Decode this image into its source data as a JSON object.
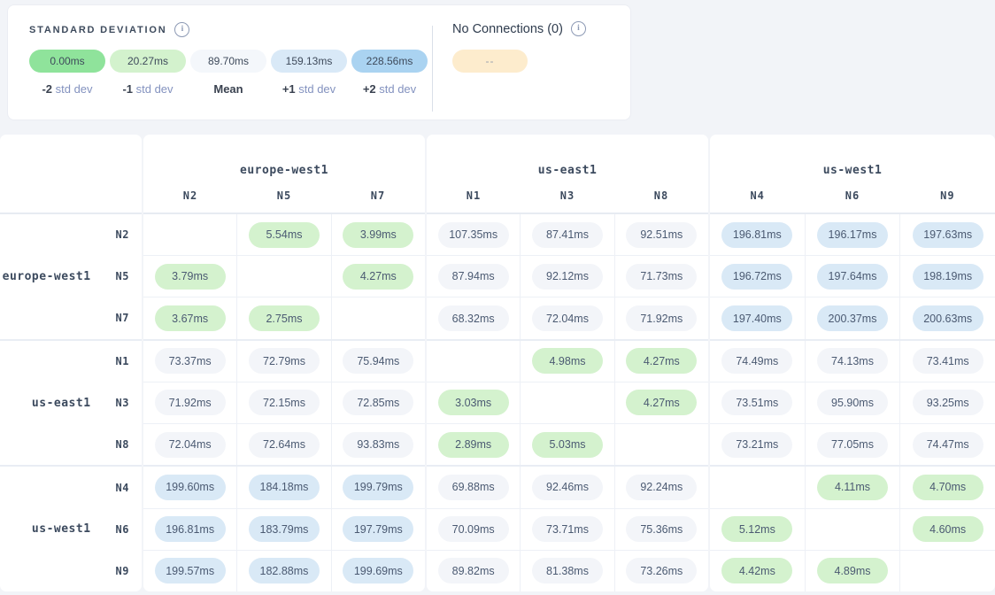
{
  "page": {
    "background": "#f2f4f8"
  },
  "legend": {
    "title": "STANDARD DEVIATION",
    "items": [
      {
        "value": "0.00ms",
        "prefix": "-2",
        "suffix": "std dev",
        "color": "#8fe39b"
      },
      {
        "value": "20.27ms",
        "prefix": "-1",
        "suffix": "std dev",
        "color": "#d3f2cd"
      },
      {
        "value": "89.70ms",
        "prefix": "Mean",
        "suffix": "",
        "color": "#f4f7fb"
      },
      {
        "value": "159.13ms",
        "prefix": "+1",
        "suffix": "std dev",
        "color": "#d9e9f7"
      },
      {
        "value": "228.56ms",
        "prefix": "+2",
        "suffix": "std dev",
        "color": "#aad3f1"
      }
    ]
  },
  "no_connections": {
    "title": "No Connections (0)",
    "chip_label": "--",
    "chip_color": "#fdeccd"
  },
  "matrix": {
    "column_groups": [
      {
        "region": "europe-west1",
        "nodes": [
          "N2",
          "N5",
          "N7"
        ]
      },
      {
        "region": "us-east1",
        "nodes": [
          "N1",
          "N3",
          "N8"
        ]
      },
      {
        "region": "us-west1",
        "nodes": [
          "N4",
          "N6",
          "N9"
        ]
      }
    ],
    "row_groups": [
      {
        "region": "europe-west1",
        "nodes": [
          "N2",
          "N5",
          "N7"
        ]
      },
      {
        "region": "us-east1",
        "nodes": [
          "N1",
          "N3",
          "N8"
        ]
      },
      {
        "region": "us-west1",
        "nodes": [
          "N4",
          "N6",
          "N9"
        ]
      }
    ],
    "tone_colors": {
      "g": "#d4f2ce",
      "n": "#f3f5f9",
      "b": "#d9e9f6"
    },
    "cells": [
      [
        "",
        "5.54ms",
        "3.99ms",
        "107.35ms",
        "87.41ms",
        "92.51ms",
        "196.81ms",
        "196.17ms",
        "197.63ms"
      ],
      [
        "3.79ms",
        "",
        "4.27ms",
        "87.94ms",
        "92.12ms",
        "71.73ms",
        "196.72ms",
        "197.64ms",
        "198.19ms"
      ],
      [
        "3.67ms",
        "2.75ms",
        "",
        "68.32ms",
        "72.04ms",
        "71.92ms",
        "197.40ms",
        "200.37ms",
        "200.63ms"
      ],
      [
        "73.37ms",
        "72.79ms",
        "75.94ms",
        "",
        "4.98ms",
        "4.27ms",
        "74.49ms",
        "74.13ms",
        "73.41ms"
      ],
      [
        "71.92ms",
        "72.15ms",
        "72.85ms",
        "3.03ms",
        "",
        "4.27ms",
        "73.51ms",
        "95.90ms",
        "93.25ms"
      ],
      [
        "72.04ms",
        "72.64ms",
        "93.83ms",
        "2.89ms",
        "5.03ms",
        "",
        "73.21ms",
        "77.05ms",
        "74.47ms"
      ],
      [
        "199.60ms",
        "184.18ms",
        "199.79ms",
        "69.88ms",
        "92.46ms",
        "92.24ms",
        "",
        "4.11ms",
        "4.70ms"
      ],
      [
        "196.81ms",
        "183.79ms",
        "197.79ms",
        "70.09ms",
        "73.71ms",
        "75.36ms",
        "5.12ms",
        "",
        "4.60ms"
      ],
      [
        "199.57ms",
        "182.88ms",
        "199.69ms",
        "89.82ms",
        "81.38ms",
        "73.26ms",
        "4.42ms",
        "4.89ms",
        ""
      ]
    ],
    "tones": [
      [
        "",
        "g",
        "g",
        "n",
        "n",
        "n",
        "b",
        "b",
        "b"
      ],
      [
        "g",
        "",
        "g",
        "n",
        "n",
        "n",
        "b",
        "b",
        "b"
      ],
      [
        "g",
        "g",
        "",
        "n",
        "n",
        "n",
        "b",
        "b",
        "b"
      ],
      [
        "n",
        "n",
        "n",
        "",
        "g",
        "g",
        "n",
        "n",
        "n"
      ],
      [
        "n",
        "n",
        "n",
        "g",
        "",
        "g",
        "n",
        "n",
        "n"
      ],
      [
        "n",
        "n",
        "n",
        "g",
        "g",
        "",
        "n",
        "n",
        "n"
      ],
      [
        "b",
        "b",
        "b",
        "n",
        "n",
        "n",
        "",
        "g",
        "g"
      ],
      [
        "b",
        "b",
        "b",
        "n",
        "n",
        "n",
        "g",
        "",
        "g"
      ],
      [
        "b",
        "b",
        "b",
        "n",
        "n",
        "n",
        "g",
        "g",
        ""
      ]
    ]
  }
}
